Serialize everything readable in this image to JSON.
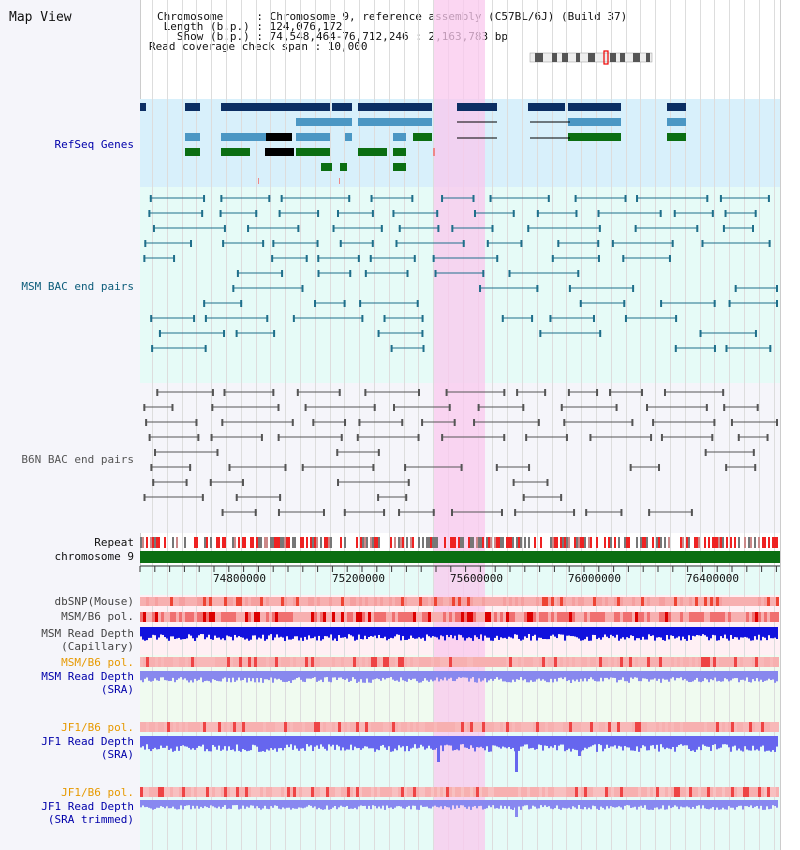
{
  "title": "Map View",
  "header": {
    "chromosome": "Chromosome     : Chromosome 9, reference assembly (C57BL/6J) (Build 37)",
    "length": " Length (b.p.) : 124,076,172",
    "show": "   Show (b.p.) : 74,548,464-76,712,246 : 2,163,783 bp",
    "coverage": "Read coverage check span : 10,000"
  },
  "tracks": {
    "refseq": "RefSeq Genes",
    "msm_bac": "MSM BAC end pairs",
    "b6n_bac": "B6N BAC end pairs",
    "repeat": "Repeat",
    "chrom": "chromosome 9",
    "dbsnp": "dbSNP(Mouse)",
    "msm_b6_pol": "MSM/B6 pol.",
    "msm_depth_cap": "MSM Read Depth\n(Capillary)",
    "msm_b6_pol2": "MSM/B6 pol.",
    "msm_depth_sra": "MSM Read Depth\n(SRA)",
    "jf1_b6_pol": "JF1/B6 pol.",
    "jf1_depth_sra": "JF1 Read Depth\n(SRA)",
    "jf1_b6_pol2": "JF1/B6 pol.",
    "jf1_depth_trim": "JF1 Read Depth\n(SRA trimmed)"
  },
  "axis_ticks": [
    "74800000",
    "75200000",
    "75600000",
    "76000000",
    "76400000"
  ],
  "colors": {
    "refseq_bg": "#d8f0fb",
    "pair_bg": "#e6fbf7",
    "gene_dark": "#0b2e63",
    "gene_mid": "#4b97c4",
    "gene_green": "#0b6e12",
    "bac_msm": "#1f6f8b",
    "bac_b6n": "#555555",
    "label_blue": "#0000aa",
    "label_teal": "#0c5c7a",
    "label_orange": "#e69900",
    "depth_dark": "#1111dd",
    "depth_light": "#7777ee"
  }
}
